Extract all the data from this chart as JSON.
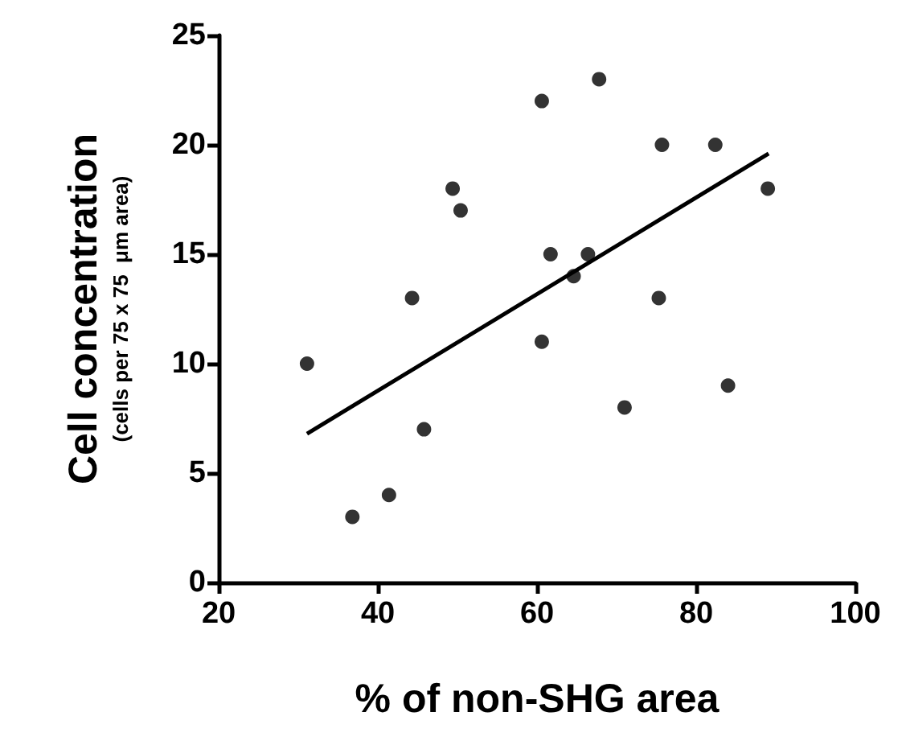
{
  "chart_data": {
    "type": "scatter",
    "xlabel": "% of non-SHG area",
    "ylabel": "Cell concentration\n(cells per 75 x 75  μm area)",
    "xlim": [
      20,
      100
    ],
    "xticks": [
      20,
      40,
      60,
      80,
      100
    ],
    "ylim": [
      0,
      25
    ],
    "yticks": [
      0,
      5,
      10,
      15,
      20,
      25
    ],
    "grid": false,
    "marker": "circle",
    "series": [
      {
        "color": "#000000",
        "x": [
          31.1,
          36.8,
          41.4,
          44.3,
          45.8,
          49.4,
          50.4,
          60.6,
          60.6,
          61.7,
          64.6,
          66.4,
          67.8,
          71.0,
          75.3,
          75.7,
          82.4,
          84.0,
          89.0
        ],
        "values": [
          10,
          3,
          4,
          13,
          7,
          18,
          17,
          22,
          11,
          15,
          14,
          15,
          23,
          8,
          13,
          20,
          20,
          9,
          18
        ]
      },
      {
        "type": "line",
        "color": "#000000",
        "marker": "none",
        "line_style": "solid",
        "x": [
          31.1,
          89.1
        ],
        "values": [
          6.8,
          19.6
        ]
      }
    ]
  }
}
